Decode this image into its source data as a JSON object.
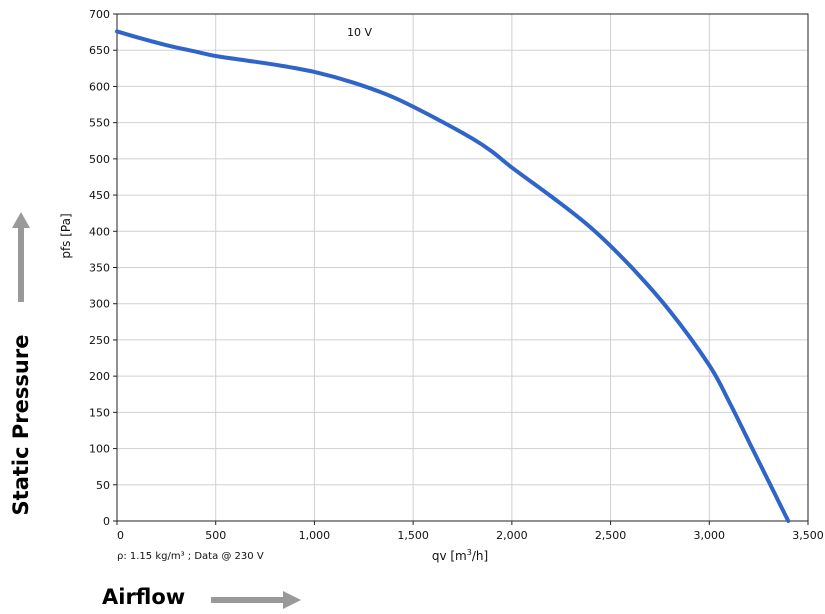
{
  "chart_data": {
    "type": "line",
    "series_label": "10 V",
    "xlabel_main": "qv [m",
    "xlabel_sup": "3",
    "xlabel_end": "/h]",
    "ylabel": "pfs [Pa]",
    "xlim": [
      0,
      3500
    ],
    "ylim": [
      0,
      700
    ],
    "xticks": [
      0,
      500,
      1000,
      1500,
      2000,
      2500,
      3000,
      3500
    ],
    "xtick_labels": [
      "0",
      "500",
      "1,000",
      "1,500",
      "2,000",
      "2,500",
      "3,000",
      "3,500"
    ],
    "yticks": [
      0,
      50,
      100,
      150,
      200,
      250,
      300,
      350,
      400,
      450,
      500,
      550,
      600,
      650,
      700
    ],
    "grid": true,
    "color": "#2f64c8",
    "x": [
      0,
      100,
      250,
      400,
      500,
      650,
      800,
      1000,
      1200,
      1400,
      1600,
      1800,
      1900,
      2000,
      2200,
      2400,
      2600,
      2800,
      3000,
      3100,
      3200,
      3300,
      3400
    ],
    "y": [
      676,
      668,
      657,
      648,
      642,
      636,
      630,
      620,
      605,
      585,
      558,
      528,
      510,
      488,
      448,
      405,
      352,
      290,
      215,
      165,
      110,
      55,
      0
    ]
  },
  "footnote": "ρ: 1.15 kg/m³ ; Data @ 230 V",
  "annotations": {
    "y_big": "Static Pressure",
    "x_big": "Airflow",
    "arrow_color": "#999999"
  }
}
